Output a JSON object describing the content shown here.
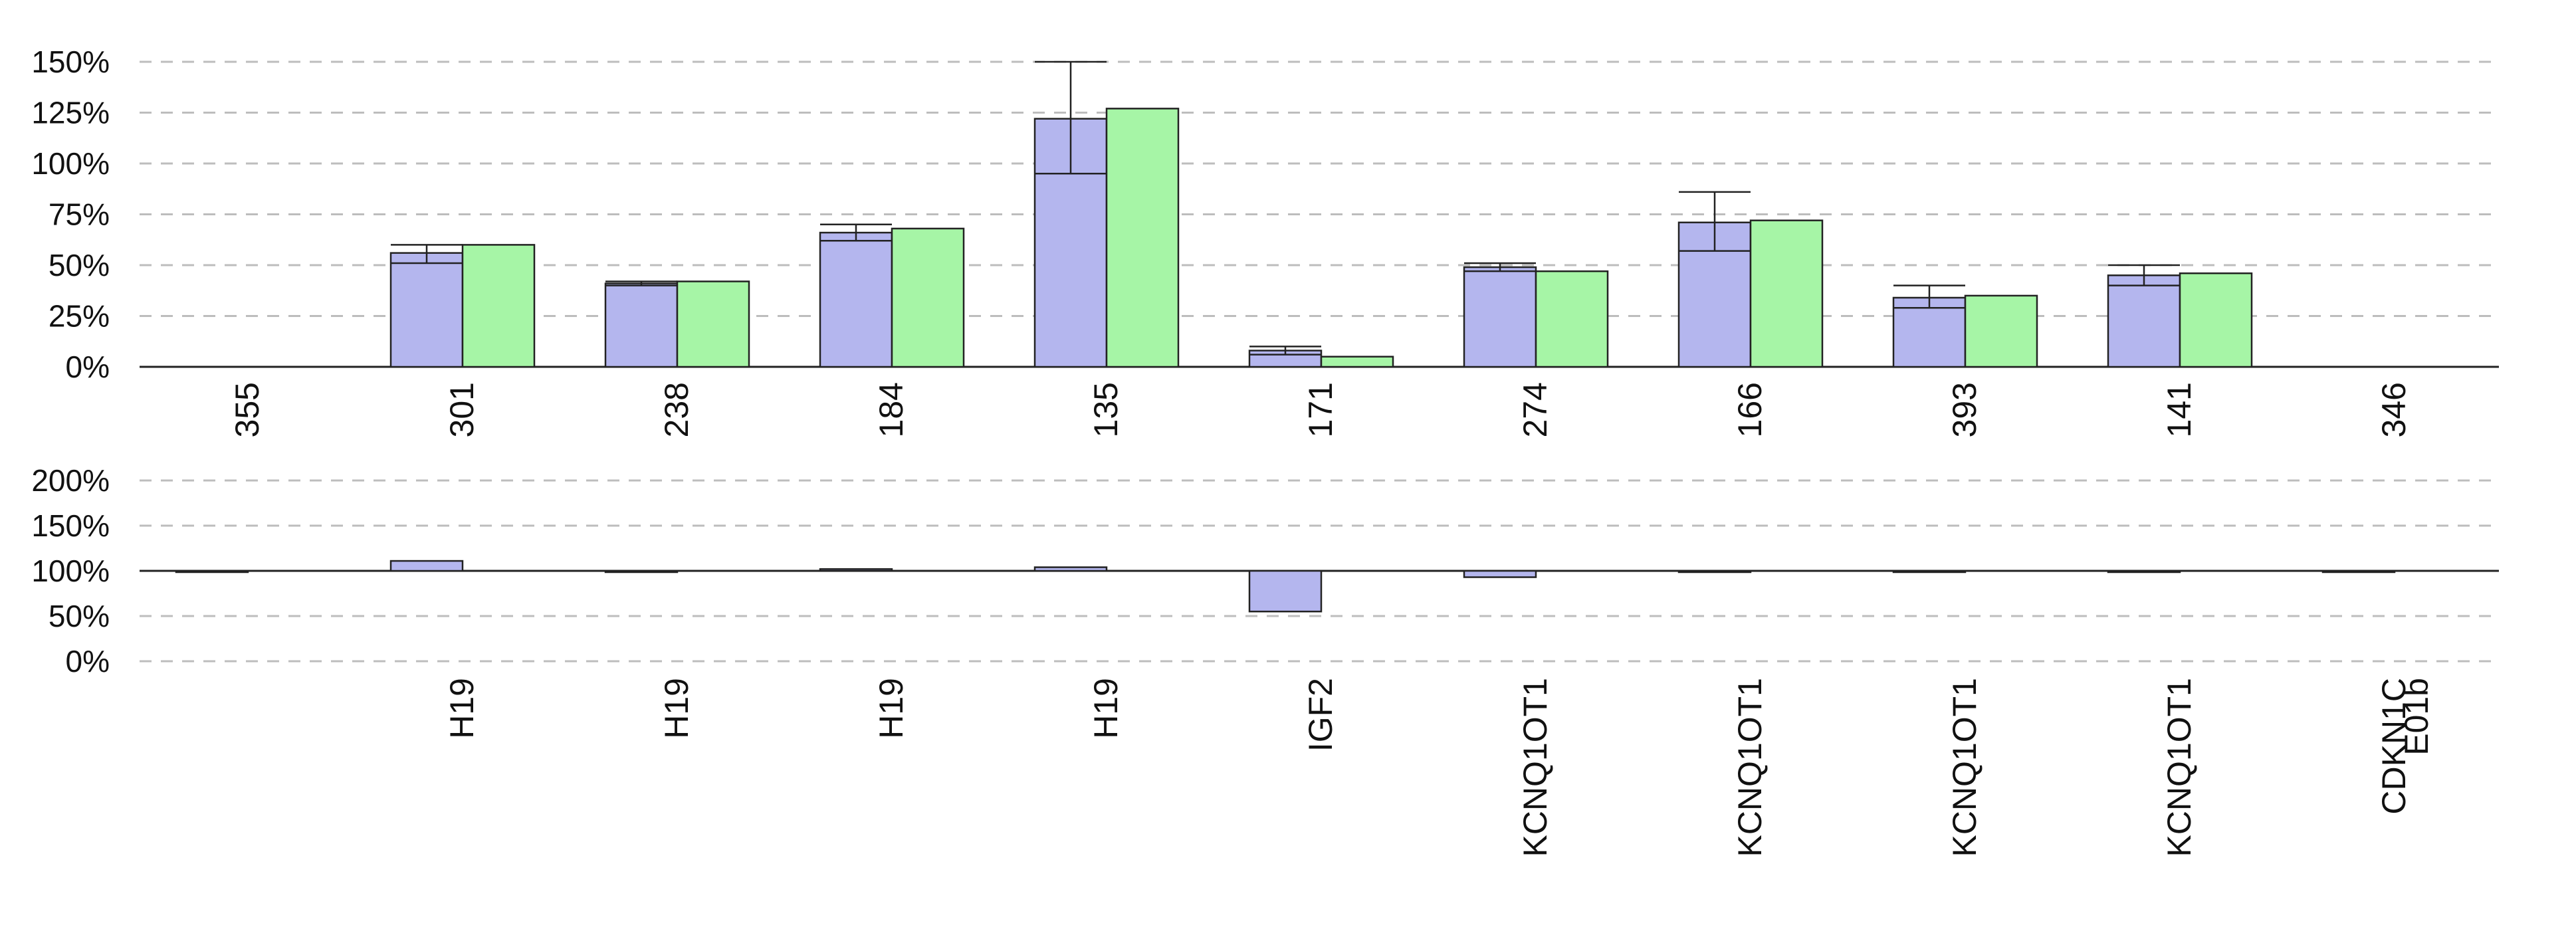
{
  "chart_data": [
    {
      "type": "bar",
      "y_ticks": [
        "0%",
        "25%",
        "50%",
        "75%",
        "100%",
        "125%",
        "150%"
      ],
      "ylim": [
        0,
        150
      ],
      "grid": true,
      "categories": [
        "355",
        "301",
        "238",
        "184",
        "135",
        "171",
        "274",
        "166",
        "393",
        "141",
        "346"
      ],
      "series": [
        {
          "color": "#b4b6ee",
          "values": [
            0,
            56,
            41,
            66,
            122,
            8,
            49,
            71,
            34,
            45,
            0
          ],
          "error_low": [
            0,
            51,
            40,
            62,
            95,
            6,
            47,
            57,
            29,
            40,
            0
          ],
          "error_high": [
            0,
            60,
            42,
            70,
            150,
            10,
            51,
            86,
            40,
            50,
            0
          ]
        },
        {
          "color": "#a6f5a6",
          "values": [
            0,
            60,
            42,
            68,
            127,
            5,
            47,
            72,
            35,
            46,
            0
          ]
        }
      ]
    },
    {
      "type": "bar",
      "y_ticks": [
        "0%",
        "50%",
        "100%",
        "150%",
        "200%"
      ],
      "ylim": [
        0,
        200
      ],
      "baseline": 100,
      "grid": true,
      "categories": [
        "",
        "H19",
        "H19",
        "H19",
        "H19",
        "IGF2",
        "KCNQ1OT1",
        "KCNQ1OT1",
        "KCNQ1OT1",
        "KCNQ1OT1",
        "CDKN1C E01b"
      ],
      "series": [
        {
          "color": "#b4b6ee",
          "values": [
            100,
            111,
            100,
            102,
            104,
            55,
            93,
            100,
            99,
            100,
            100
          ]
        }
      ]
    }
  ]
}
